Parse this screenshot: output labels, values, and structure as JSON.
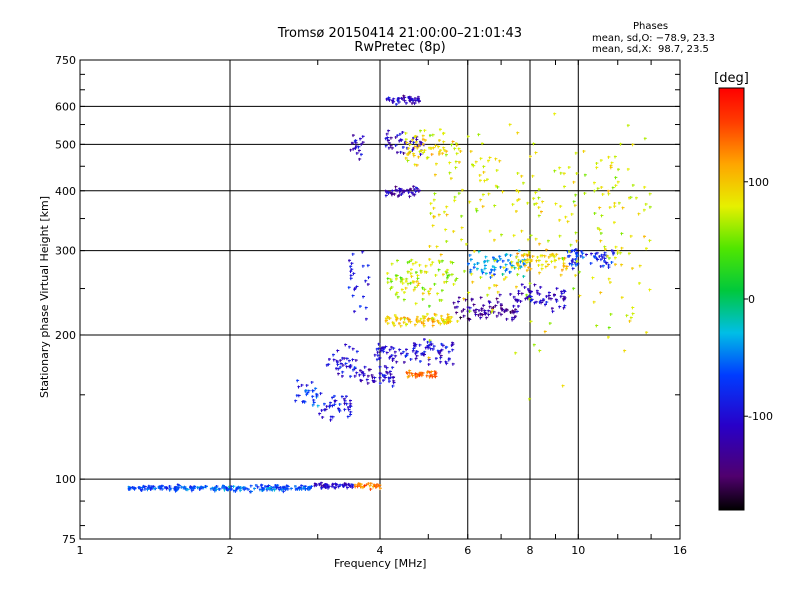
{
  "header": {
    "title_line1": "Tromsø 20150414 21:00:00–21:01:43",
    "title_line2": "RwPretec (8p)",
    "stats_title": "Phases",
    "stats_o": "mean, sd,O: −78.9, 23.3",
    "stats_x": "mean, sd,X:  98.7, 23.5"
  },
  "chart_data": {
    "type": "scatter",
    "title": "Tromsø 20150414 21:00:00–21:01:43",
    "subtitle": "RwPretec (8p)",
    "xlabel": "Frequency [MHz]",
    "ylabel": "Stationary phase Virtual Height [km]",
    "x_scale": "log",
    "y_scale": "log",
    "xlim": [
      1,
      16
    ],
    "ylim": [
      75,
      750
    ],
    "x_ticks": [
      1,
      2,
      4,
      6,
      8,
      10,
      16
    ],
    "y_ticks": [
      75,
      100,
      200,
      300,
      400,
      500,
      600,
      750
    ],
    "x_gridlines": [
      2,
      4,
      6,
      8,
      10
    ],
    "y_gridlines": [
      100,
      200,
      300,
      400,
      500,
      600
    ],
    "grid": true,
    "colorbar": {
      "label": "[deg]",
      "range": [
        -180,
        180
      ],
      "ticks": [
        -100,
        0,
        100
      ],
      "colormap": "rainbow"
    },
    "trace_groups": [
      {
        "x_range": [
          1.25,
          1.55
        ],
        "y": 96,
        "phase": -70,
        "spread": 1.5
      },
      {
        "x_range": [
          1.55,
          2.95
        ],
        "y": 96,
        "phase": -60,
        "spread": 2
      },
      {
        "x_range": [
          2.95,
          3.55
        ],
        "y": 97,
        "phase": -105,
        "spread": 2
      },
      {
        "x_range": [
          3.55,
          4.0
        ],
        "y": 97,
        "phase": 130,
        "spread": 2
      },
      {
        "x_range": [
          2.7,
          3.0
        ],
        "y": 150,
        "phase": -70,
        "spread": 15
      },
      {
        "x_range": [
          3.0,
          3.5
        ],
        "y": 140,
        "phase": -95,
        "spread": 15
      },
      {
        "x_range": [
          3.1,
          3.6
        ],
        "y": 175,
        "phase": -100,
        "spread": 20
      },
      {
        "x_range": [
          3.45,
          3.7
        ],
        "y": 495,
        "phase": -110,
        "spread": 60
      },
      {
        "x_range": [
          3.45,
          3.8
        ],
        "y": 260,
        "phase": -90,
        "spread": 60
      },
      {
        "x_range": [
          3.6,
          4.3
        ],
        "y": 165,
        "phase": -110,
        "spread": 10
      },
      {
        "x_range": [
          3.9,
          5.6
        ],
        "y": 185,
        "phase": -100,
        "spread": 15
      },
      {
        "x_range": [
          4.1,
          4.8
        ],
        "y": 400,
        "phase": -120,
        "spread": 15
      },
      {
        "x_range": [
          4.1,
          4.9
        ],
        "y": 500,
        "phase": -110,
        "spread": 50
      },
      {
        "x_range": [
          4.1,
          4.8
        ],
        "y": 620,
        "phase": -110,
        "spread": 20
      },
      {
        "x_range": [
          4.5,
          5.8
        ],
        "y": 490,
        "phase": 90,
        "spread": 60
      },
      {
        "x_range": [
          4.1,
          5.6
        ],
        "y": 215,
        "phase": 100,
        "spread": 8
      },
      {
        "x_range": [
          4.5,
          5.2
        ],
        "y": 166,
        "phase": 135,
        "spread": 4
      },
      {
        "x_range": [
          4.1,
          5.7
        ],
        "y": 265,
        "phase": 70,
        "spread": 40
      },
      {
        "x_range": [
          5.6,
          7.5
        ],
        "y": 225,
        "phase": -130,
        "spread": 20
      },
      {
        "x_range": [
          6.0,
          7.8
        ],
        "y": 280,
        "phase": -40,
        "spread": 25
      },
      {
        "x_range": [
          7.3,
          9.4
        ],
        "y": 240,
        "phase": -110,
        "spread": 20
      },
      {
        "x_range": [
          7.5,
          9.5
        ],
        "y": 285,
        "phase": 100,
        "spread": 20
      },
      {
        "x_range": [
          9.5,
          11.8
        ],
        "y": 290,
        "phase": -80,
        "spread": 20
      },
      {
        "x_range": [
          5.0,
          14.0
        ],
        "y": 350,
        "phase": 80,
        "spread": 250
      }
    ]
  }
}
